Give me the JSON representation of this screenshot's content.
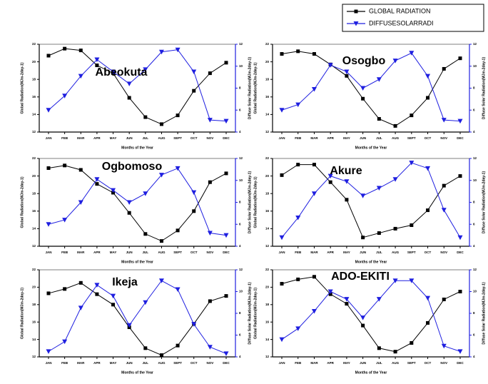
{
  "chart_data": [
    {
      "type": "line",
      "title": "Abeokuta",
      "xlabel": "Months of the Year",
      "ylabel": "Global Radiation(MJm-2day-1)",
      "y2label": "Diffuse Solar Radiation(MJm-2day-1)",
      "categories": [
        "JAN",
        "FEB",
        "MAR",
        "APR",
        "MAY",
        "JUN",
        "JUL",
        "AUG",
        "SEPT",
        "OCT",
        "NOV",
        "DEC"
      ],
      "ylim": [
        12,
        22
      ],
      "yticks": [
        12,
        14,
        16,
        18,
        20,
        22
      ],
      "y2lim": [
        4,
        12
      ],
      "y2ticks": [
        4,
        6,
        8,
        10,
        12
      ],
      "series": [
        {
          "name": "GLOBAL RADIATION",
          "color": "#000000",
          "values": [
            20.7,
            21.5,
            21.3,
            19.6,
            18.7,
            15.9,
            13.7,
            12.9,
            13.9,
            16.7,
            18.7,
            19.9
          ]
        },
        {
          "name": "DIFFUSESOLARRADI",
          "color": "#1f1fe0",
          "axis": "y2",
          "values": [
            6.0,
            7.3,
            9.1,
            10.6,
            9.5,
            8.4,
            9.7,
            11.3,
            11.5,
            9.5,
            5.1,
            5.0
          ]
        }
      ]
    },
    {
      "type": "line",
      "title": "Osogbo",
      "xlabel": "Months of the Year",
      "ylabel": "Global Radiation(MJm-2day-1)",
      "y2label": "Diffuse Solar Radiation(MJm-2day-1)",
      "categories": [
        "JAN",
        "FEB",
        "MAR",
        "APR",
        "MAY",
        "JUN",
        "JUL",
        "AUG",
        "SEPT",
        "OCT",
        "NOV",
        "DEC"
      ],
      "ylim": [
        12,
        22
      ],
      "yticks": [
        12,
        14,
        16,
        18,
        20,
        22
      ],
      "y2lim": [
        4,
        12
      ],
      "y2ticks": [
        4,
        6,
        8,
        10,
        12
      ],
      "series": [
        {
          "color": "#000000",
          "values": [
            20.9,
            21.2,
            20.9,
            19.7,
            18.4,
            15.8,
            13.5,
            12.7,
            13.9,
            15.9,
            19.2,
            20.4
          ]
        },
        {
          "color": "#1f1fe0",
          "axis": "y2",
          "values": [
            6.0,
            6.5,
            7.9,
            10.1,
            9.5,
            8.0,
            8.8,
            10.5,
            11.2,
            9.1,
            5.1,
            5.0
          ]
        }
      ]
    },
    {
      "type": "line",
      "title": "Ogbomoso",
      "xlabel": "Months of the Year",
      "ylabel": "Global Radiation(MJm-2day-1)",
      "y2label": "Diffuse Solar Radiation(MJm-2day-1)",
      "categories": [
        "JAN",
        "FEB",
        "MAR",
        "APR",
        "MAY",
        "JUN",
        "JUL",
        "AUG",
        "SEPT",
        "OCT",
        "NOV",
        "DEC"
      ],
      "ylim": [
        12,
        22
      ],
      "yticks": [
        12,
        14,
        16,
        18,
        20,
        22
      ],
      "y2lim": [
        4,
        12
      ],
      "y2ticks": [
        4,
        6,
        8,
        10,
        12
      ],
      "series": [
        {
          "color": "#000000",
          "values": [
            20.9,
            21.2,
            20.7,
            19.1,
            18.1,
            15.8,
            13.4,
            12.6,
            13.8,
            16.0,
            19.3,
            20.3
          ]
        },
        {
          "color": "#1f1fe0",
          "axis": "y2",
          "values": [
            6.0,
            6.4,
            8.0,
            10.1,
            9.1,
            8.0,
            8.8,
            10.5,
            11.1,
            8.9,
            5.2,
            5.0
          ]
        }
      ]
    },
    {
      "type": "line",
      "title": "Akure",
      "xlabel": "Months of the Year",
      "ylabel": "Global Radiation(MJm-2day-1)",
      "y2label": "Diffuse Solar Radiation(MJm-2day-1)",
      "categories": [
        "JAN",
        "FEB",
        "MAR",
        "APR",
        "MAY",
        "JUN",
        "JUL",
        "AUG",
        "SEPT",
        "OCT",
        "NOV",
        "DEC"
      ],
      "ylim": [
        12,
        22
      ],
      "yticks": [
        12,
        14,
        16,
        18,
        20,
        22
      ],
      "y2lim": [
        4,
        12
      ],
      "y2ticks": [
        4,
        6,
        8,
        10,
        12
      ],
      "series": [
        {
          "color": "#000000",
          "values": [
            20.1,
            21.3,
            21.3,
            19.3,
            17.3,
            13.0,
            13.5,
            14.0,
            14.4,
            16.1,
            18.9,
            20.0
          ]
        },
        {
          "color": "#1f1fe0",
          "axis": "y2",
          "values": [
            4.8,
            6.6,
            8.8,
            10.4,
            9.9,
            8.6,
            9.3,
            10.1,
            11.6,
            11.1,
            7.3,
            4.8
          ]
        }
      ]
    },
    {
      "type": "line",
      "title": "Ikeja",
      "xlabel": "Months of the Year",
      "ylabel": "Global Radiation(MJm-2day-1)",
      "y2label": "Diffuse Solar Radiation(MJm-2day-1)",
      "categories": [
        "JAN",
        "FEB",
        "MAR",
        "APR",
        "MAY",
        "JUN",
        "JUL",
        "AUG",
        "SEPT",
        "OCT",
        "NOV",
        "DEC"
      ],
      "ylim": [
        12,
        22
      ],
      "yticks": [
        12,
        14,
        16,
        18,
        20,
        22
      ],
      "y2lim": [
        4,
        12
      ],
      "y2ticks": [
        4,
        6,
        8,
        10,
        12
      ],
      "series": [
        {
          "color": "#000000",
          "values": [
            19.3,
            19.8,
            20.5,
            19.2,
            18.0,
            15.4,
            13.0,
            12.2,
            13.3,
            15.8,
            18.4,
            19.0
          ]
        },
        {
          "color": "#1f1fe0",
          "axis": "y2",
          "values": [
            4.5,
            5.4,
            8.5,
            10.6,
            9.6,
            6.9,
            9.0,
            11.0,
            10.2,
            7.0,
            4.9,
            4.3
          ]
        }
      ]
    },
    {
      "type": "line",
      "title": "ADO-EKITI",
      "xlabel": "Months of the Year",
      "ylabel": "Global Radiation(MJm-2day-1)",
      "y2label": "Diffuse Solar Radiation(MJm-2day-1)",
      "categories": [
        "JAN",
        "FEB",
        "MAR",
        "APR",
        "MAY",
        "JUN",
        "JUL",
        "AUG",
        "SEPT",
        "OCT",
        "NOV",
        "DEC"
      ],
      "ylim": [
        12,
        22
      ],
      "yticks": [
        12,
        14,
        16,
        18,
        20,
        22
      ],
      "y2lim": [
        4,
        12
      ],
      "y2ticks": [
        4,
        6,
        8,
        10,
        12
      ],
      "series": [
        {
          "color": "#000000",
          "values": [
            20.4,
            20.9,
            21.2,
            19.2,
            18.1,
            15.6,
            13.0,
            12.6,
            13.6,
            15.9,
            18.6,
            19.5
          ]
        },
        {
          "color": "#1f1fe0",
          "axis": "y2",
          "values": [
            5.6,
            6.6,
            8.2,
            10.0,
            9.3,
            7.6,
            9.3,
            11.0,
            11.0,
            9.4,
            5.0,
            4.5
          ]
        }
      ]
    }
  ]
}
